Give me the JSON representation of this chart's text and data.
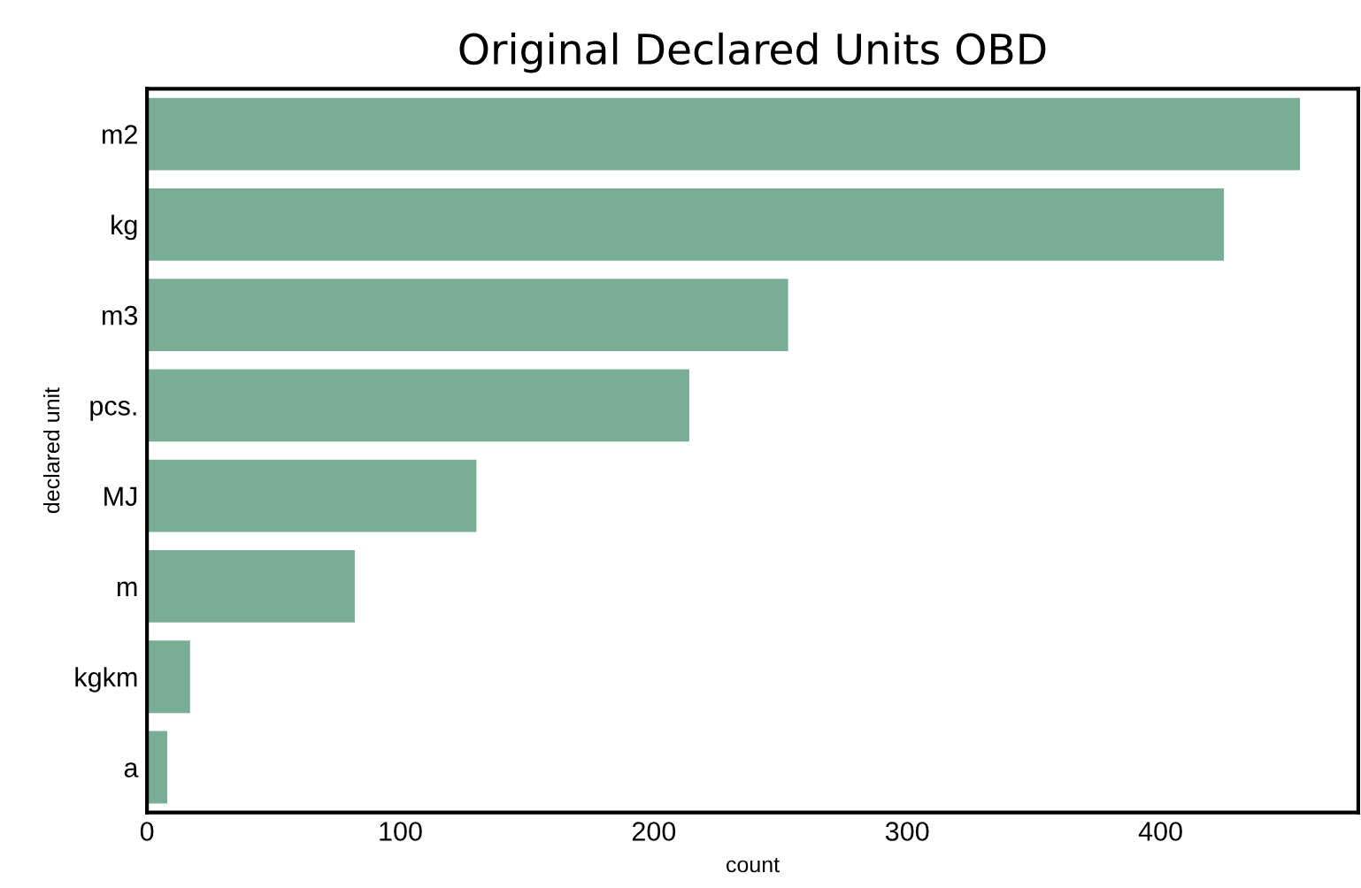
{
  "chart_data": {
    "type": "bar",
    "orientation": "horizontal",
    "title": "Original Declared Units OBD",
    "xlabel": "count",
    "ylabel": "declared unit",
    "categories": [
      "m2",
      "kg",
      "m3",
      "pcs.",
      "MJ",
      "m",
      "kgkm",
      "a"
    ],
    "values": [
      455,
      425,
      253,
      214,
      130,
      82,
      17,
      8
    ],
    "color": "#79ad96",
    "xlim": [
      0,
      478
    ],
    "xticks": [
      0,
      100,
      200,
      300,
      400
    ],
    "grid": false
  }
}
